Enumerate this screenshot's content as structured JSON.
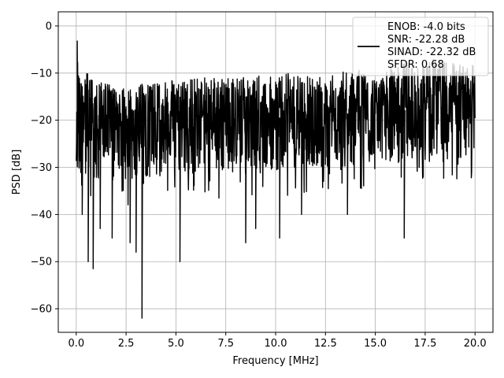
{
  "chart_data": {
    "type": "line",
    "xlabel": "Frequency [MHz]",
    "ylabel": "PSD [dB]",
    "xlim": [
      -0.9,
      20.9
    ],
    "ylim": [
      -65,
      3
    ],
    "xticks": [
      0.0,
      2.5,
      5.0,
      7.5,
      10.0,
      12.5,
      15.0,
      17.5,
      20.0
    ],
    "xtick_labels": [
      "0.0",
      "2.5",
      "5.0",
      "7.5",
      "10.0",
      "12.5",
      "15.0",
      "17.5",
      "20.0"
    ],
    "yticks": [
      0,
      -10,
      -20,
      -30,
      -40,
      -50,
      -60
    ],
    "ytick_labels": [
      "0",
      "−10",
      "−20",
      "−30",
      "−40",
      "−50",
      "−60"
    ],
    "grid": true,
    "line_color": "#000000",
    "legend": {
      "placement": "top-right",
      "lines": [
        "ENOB: -4.0 bits",
        "SNR: -22.28 dB",
        "SINAD: -22.32 dB",
        "SFDR: 0.68"
      ]
    },
    "series": [
      {
        "x_range": [
          0,
          20
        ],
        "upper_envelope": [
          [
            0,
            -3.5
          ],
          [
            0.5,
            -10
          ],
          [
            2,
            -13
          ],
          [
            4,
            -12
          ],
          [
            6,
            -11
          ],
          [
            8,
            -11
          ],
          [
            10,
            -10
          ],
          [
            12,
            -10
          ],
          [
            14,
            -9
          ],
          [
            15,
            -10
          ],
          [
            16,
            -8
          ],
          [
            17,
            -7
          ],
          [
            18,
            -7
          ],
          [
            19,
            -8
          ],
          [
            20,
            -8
          ]
        ],
        "lower_typical": [
          [
            0,
            -32
          ],
          [
            2,
            -33
          ],
          [
            5,
            -31
          ],
          [
            8,
            -31
          ],
          [
            10,
            -30
          ],
          [
            13,
            -30
          ],
          [
            15,
            -29
          ],
          [
            17,
            -29
          ],
          [
            20,
            -28
          ]
        ],
        "median": [
          [
            0,
            -22
          ],
          [
            4,
            -21
          ],
          [
            8,
            -20
          ],
          [
            12,
            -19
          ],
          [
            16,
            -18
          ],
          [
            20,
            -17
          ]
        ],
        "spikes": [
          [
            0.05,
            -3.2
          ],
          [
            0.3,
            -40
          ],
          [
            0.6,
            -50
          ],
          [
            0.85,
            -51.5
          ],
          [
            1.2,
            -43
          ],
          [
            1.8,
            -45
          ],
          [
            2.7,
            -46
          ],
          [
            3.3,
            -62
          ],
          [
            3.0,
            -48
          ],
          [
            5.2,
            -50
          ],
          [
            8.5,
            -46
          ],
          [
            9.0,
            -43
          ],
          [
            10.2,
            -45
          ],
          [
            11.3,
            -40
          ],
          [
            13.6,
            -40
          ],
          [
            16.45,
            -45
          ],
          [
            17.2,
            -30
          ]
        ]
      }
    ]
  }
}
